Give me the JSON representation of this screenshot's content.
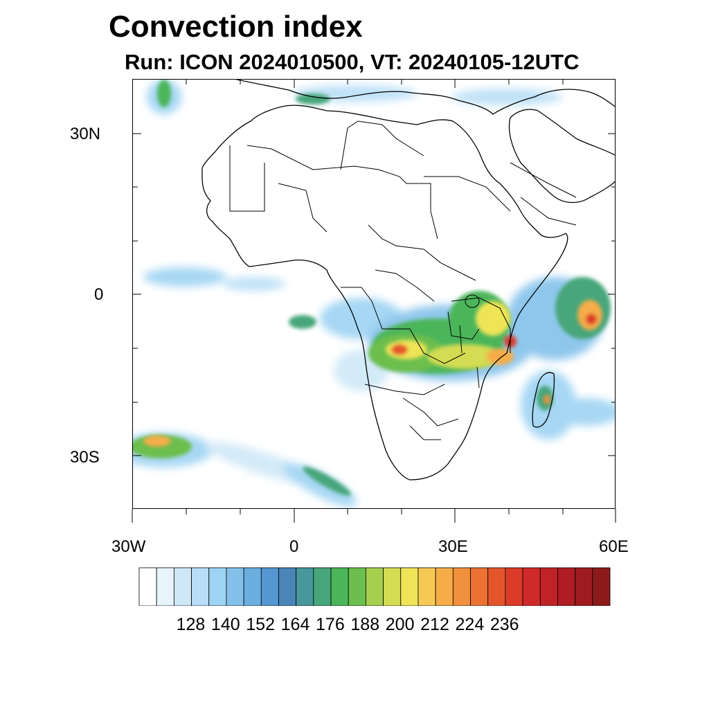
{
  "title": "Convection index",
  "subtitle": "Run: ICON 2024010500,  VT: 20240105-12UTC",
  "map": {
    "region": "Africa",
    "lon_range": [
      -30,
      60
    ],
    "lat_range": [
      -40,
      40
    ],
    "lon_ticks": [
      "30W",
      "0",
      "30E",
      "60E"
    ],
    "lat_ticks": [
      "30N",
      "0",
      "30S"
    ]
  },
  "colorbar": {
    "colors": [
      "#ffffff",
      "#e8f4fb",
      "#cfe8f7",
      "#b7def6",
      "#9dd3f3",
      "#83c1ea",
      "#6aaee0",
      "#5497d2",
      "#4a85b8",
      "#47979b",
      "#47a67a",
      "#4bb55a",
      "#6cbe4e",
      "#a6cf4e",
      "#d4dc52",
      "#efe457",
      "#f6c955",
      "#f6ad48",
      "#f1903d",
      "#ec7233",
      "#e5552c",
      "#dc3b29",
      "#cf2a29",
      "#c02227",
      "#af1c24",
      "#9e1b20",
      "#8c1a1a"
    ],
    "labels": [
      "128",
      "140",
      "152",
      "164",
      "176",
      "188",
      "200",
      "212",
      "224",
      "236"
    ]
  }
}
